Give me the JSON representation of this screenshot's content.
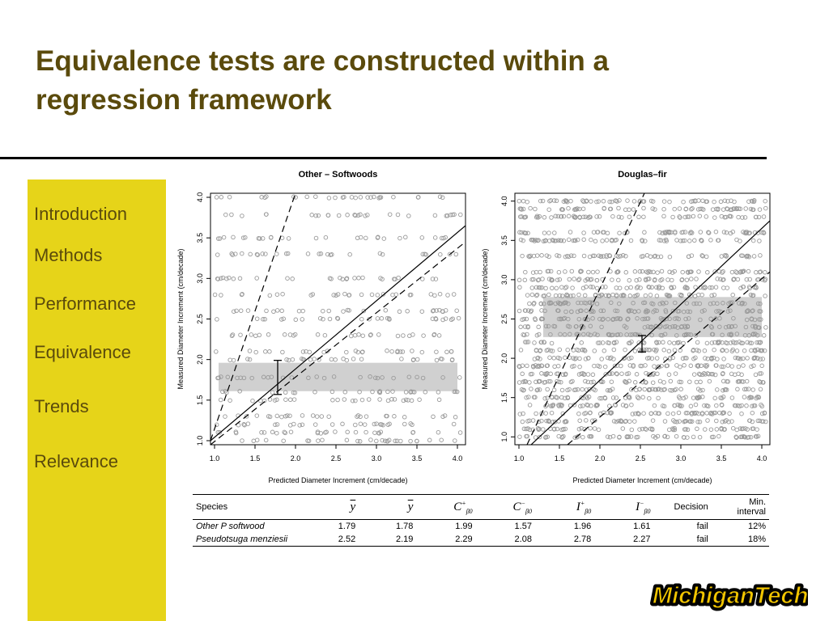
{
  "slide": {
    "title_line1": "Equivalence tests are constructed within a",
    "title_line2": "regression framework"
  },
  "nav": {
    "items": [
      "Introduction",
      "Methods",
      "Performance",
      "Equivalence",
      "Trends",
      "Relevance"
    ]
  },
  "logo": {
    "text": "MichiganTech"
  },
  "colors": {
    "title": "#5a4a0c",
    "sidebar": "#e6d419",
    "points": "#9a9a9a",
    "band": "#d0d0d0"
  },
  "chart_data": [
    {
      "type": "scatter",
      "title": "Other – Softwoods",
      "xlabel": "Predicted Diameter Increment (cm/decade)",
      "ylabel": "Measured Diameter Increment (cm/decade)",
      "xlim": [
        0.95,
        4.1
      ],
      "ylim": [
        0.95,
        4.05
      ],
      "xticks": [
        "1.0",
        "1.5",
        "2.0",
        "2.5",
        "3.0",
        "3.5",
        "4.0"
      ],
      "yticks": [
        "1.0",
        "1.5",
        "2.0",
        "2.5",
        "3.0",
        "3.5",
        "4.0"
      ],
      "show_xticklabels": true,
      "show_xlabel": true,
      "grid": false,
      "x_range_points": [
        1.0,
        4.05
      ],
      "point_levels": [
        1.0,
        1.1,
        1.2,
        1.3,
        1.5,
        1.6,
        1.78,
        2.0,
        2.1,
        2.3,
        2.5,
        2.6,
        2.8,
        3.0,
        3.3,
        3.5,
        3.78,
        4.0
      ],
      "points_per_level": 28,
      "band": {
        "x": [
          1.05,
          4.0
        ],
        "y": [
          1.61,
          1.96
        ]
      },
      "error_bar": {
        "x": 1.78,
        "y": [
          1.57,
          1.99
        ]
      },
      "regression_line": {
        "x": [
          0.95,
          4.1
        ],
        "y": [
          1.0,
          3.65
        ]
      },
      "equivalence_lines": [
        {
          "x": [
            0.95,
            2.0
          ],
          "y": [
            1.0,
            4.05
          ]
        },
        {
          "x": [
            0.95,
            4.1
          ],
          "y": [
            0.95,
            3.45
          ]
        }
      ]
    },
    {
      "type": "scatter",
      "title": "Douglas–fir",
      "xlabel": "Predicted Diameter Increment (cm/decade)",
      "ylabel": "Measured Diameter Increment (cm/decade)",
      "xlim": [
        0.95,
        4.1
      ],
      "ylim": [
        0.9,
        4.1
      ],
      "xticks": [
        "1.0",
        "1.5",
        "2.0",
        "2.5",
        "3.0",
        "3.5",
        "4.0"
      ],
      "yticks": [
        "1.0",
        "1.5",
        "2.0",
        "2.5",
        "3.0",
        "3.5",
        "4.0"
      ],
      "show_xticklabels": true,
      "show_xlabel": true,
      "grid": false,
      "x_range_points": [
        1.0,
        4.05
      ],
      "point_levels": [
        1.0,
        1.1,
        1.2,
        1.3,
        1.4,
        1.5,
        1.6,
        1.7,
        1.8,
        1.9,
        2.0,
        2.1,
        2.2,
        2.3,
        2.4,
        2.5,
        2.6,
        2.7,
        2.8,
        2.9,
        3.0,
        3.1,
        3.3,
        3.5,
        3.6,
        3.8,
        3.9,
        4.0
      ],
      "points_per_level": 60,
      "band": {
        "x": [
          1.3,
          4.0
        ],
        "y": [
          2.27,
          2.78
        ]
      },
      "error_bar": {
        "x": 2.52,
        "y": [
          2.08,
          2.29
        ]
      },
      "regression_line": {
        "x": [
          1.15,
          4.1
        ],
        "y": [
          0.9,
          3.75
        ]
      },
      "equivalence_lines": [
        {
          "x": [
            1.1,
            2.55
          ],
          "y": [
            0.9,
            4.1
          ]
        },
        {
          "x": [
            1.6,
            4.1
          ],
          "y": [
            0.9,
            3.1
          ]
        }
      ]
    }
  ],
  "table": {
    "headers": {
      "species": "Species",
      "ybarhat": "y",
      "ybar": "y",
      "c_plus": "C",
      "c_minus": "C",
      "i_plus": "I",
      "i_minus": "I",
      "beta_sub": "β",
      "zero": "0",
      "plus": "+",
      "minus": "−",
      "decision": "Decision",
      "min_line1": "Min.",
      "min_line2": "interval"
    },
    "rows": [
      {
        "species": "Other P softwood",
        "ybarhat": "1.79",
        "ybar": "1.78",
        "c_plus": "1.99",
        "c_minus": "1.57",
        "i_plus": "1.96",
        "i_minus": "1.61",
        "decision": "fail",
        "min_interval": "12%"
      },
      {
        "species": "Pseudotsuga menziesii",
        "ybarhat": "2.52",
        "ybar": "2.19",
        "c_plus": "2.29",
        "c_minus": "2.08",
        "i_plus": "2.78",
        "i_minus": "2.27",
        "decision": "fail",
        "min_interval": "18%"
      }
    ]
  }
}
